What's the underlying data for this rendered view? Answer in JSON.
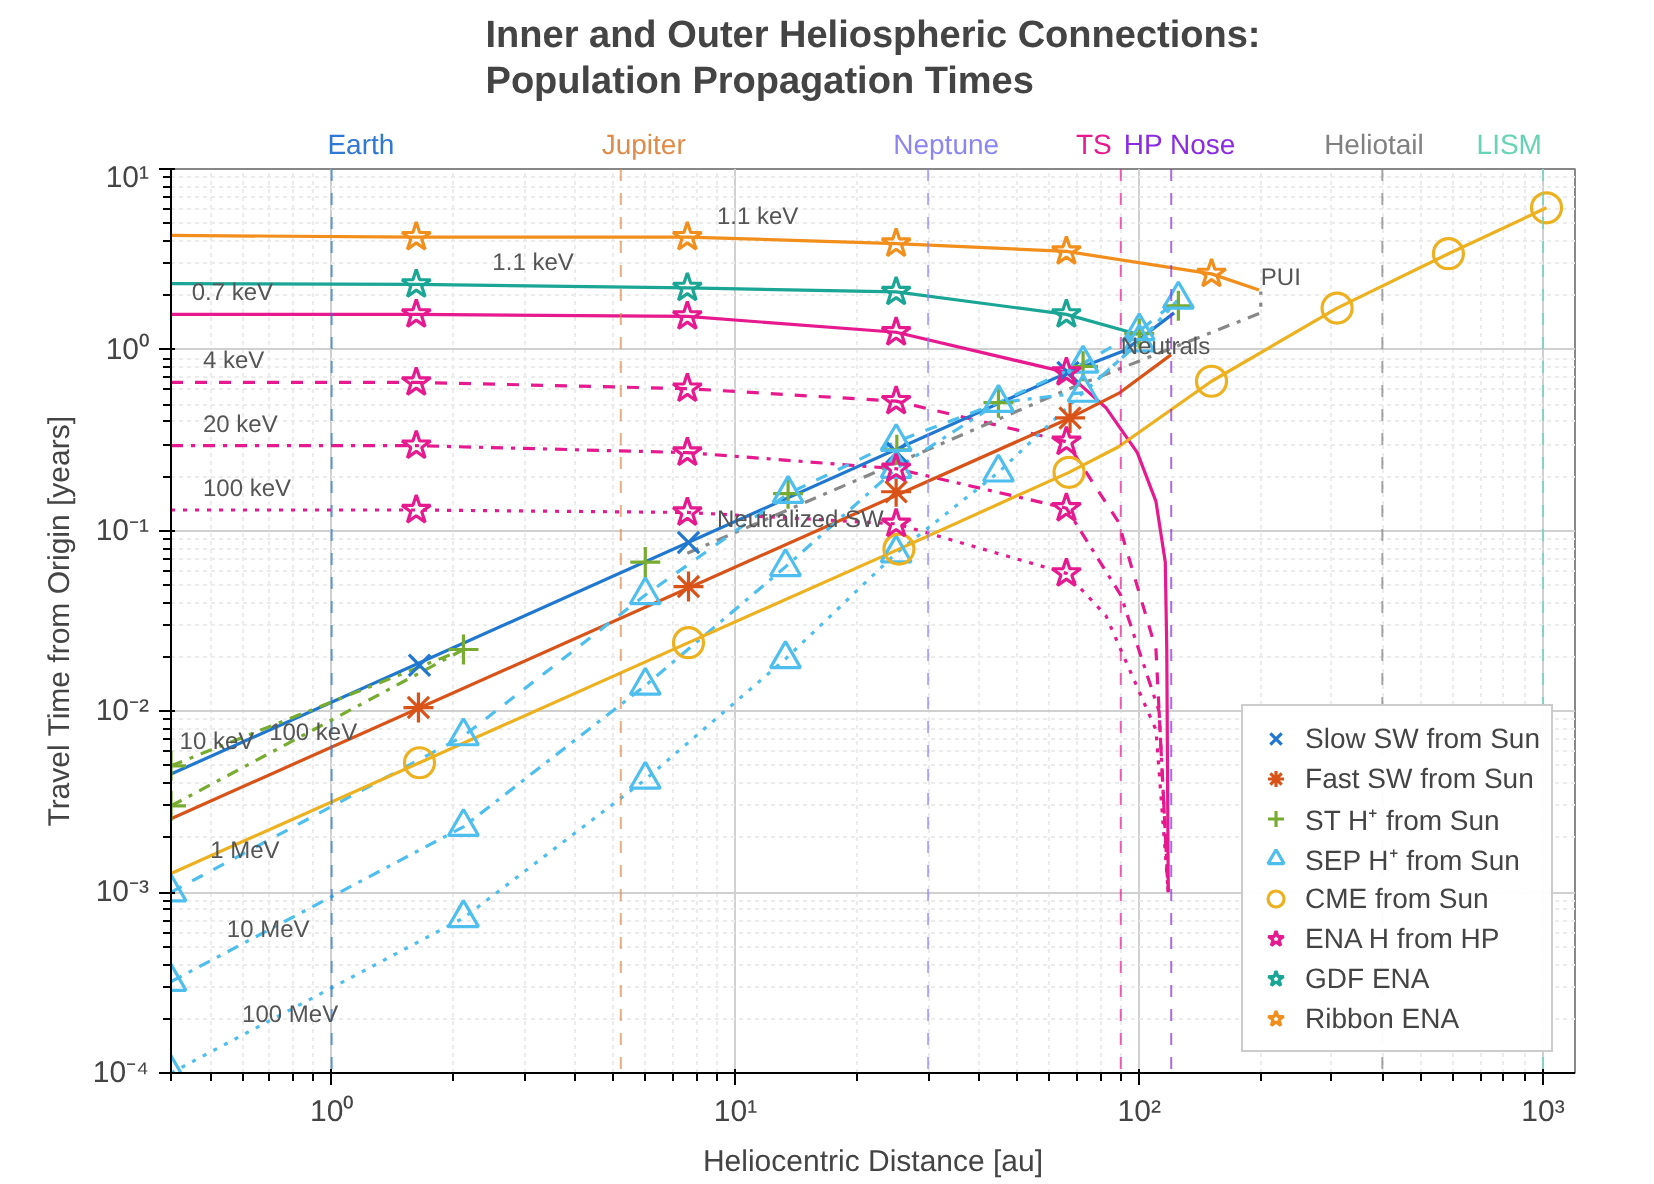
{
  "chart_data": {
    "type": "line",
    "title": "Inner and Outer Heliospheric Connections:\nPopulation Propagation Times",
    "xlabel": "Heliocentric Distance [au]",
    "ylabel": "Travel Time from Origin [years]",
    "log": "xy",
    "grid": true,
    "legend": "bottom right",
    "xlim": [
      0.4,
      1200
    ],
    "ylim": [
      0.0001,
      10
    ],
    "xticks": [
      {
        "value": 1,
        "label": "10⁰"
      },
      {
        "value": 10,
        "label": "10¹"
      },
      {
        "value": 100,
        "label": "10²"
      },
      {
        "value": 1000,
        "label": "10³"
      }
    ],
    "yticks": [
      {
        "value": 0.0001,
        "label": "10⁻⁴"
      },
      {
        "value": 0.001,
        "label": "10⁻³"
      },
      {
        "value": 0.01,
        "label": "10⁻²"
      },
      {
        "value": 0.1,
        "label": "10⁻¹"
      },
      {
        "value": 1,
        "label": "10⁰"
      },
      {
        "value": 10,
        "label": "10¹"
      }
    ],
    "ref_lines": [
      {
        "axis": "x",
        "value": 1,
        "label": "Earth",
        "color": "#2f78d4",
        "line_style": "dashed"
      },
      {
        "axis": "x",
        "value": 5.2,
        "label": "Jupiter",
        "color": "#e08a4a",
        "line_style": "dashed"
      },
      {
        "axis": "x",
        "value": 30,
        "label": "Neptune",
        "color": "#8c86f5",
        "line_style": "dashed"
      },
      {
        "axis": "x",
        "value": 90,
        "label": "TS",
        "color": "#e6198f",
        "line_style": "dashed"
      },
      {
        "axis": "x",
        "value": 120,
        "label": "HP Nose",
        "color": "#8a2be2",
        "line_style": "dashed"
      },
      {
        "axis": "x",
        "value": 400,
        "label": "Heliotail",
        "color": "#808080",
        "line_style": "dashed"
      },
      {
        "axis": "x",
        "value": 1000,
        "label": "LISM",
        "color": "#66d4b4",
        "line_style": "dashed"
      }
    ],
    "series": [
      {
        "color": "#f28e1c",
        "line_style": "solid",
        "x": [
          0.4,
          1.62,
          7.6,
          25,
          66,
          151,
          198
        ],
        "values": [
          4.29,
          4.2,
          4.2,
          3.87,
          3.5,
          2.63,
          2.14
        ]
      },
      {
        "color": "#1aa595",
        "line_style": "solid",
        "x": [
          0.4,
          1.62,
          7.6,
          25,
          66,
          99
        ],
        "values": [
          2.32,
          2.3,
          2.2,
          2.09,
          1.57,
          1.22
        ]
      },
      {
        "color": "#e6198f",
        "line_style": "solid",
        "x": [
          0.4,
          1.62,
          7.6,
          25,
          66,
          82.6,
          98.9,
          110,
          116,
          117,
          118
        ],
        "values": [
          1.57,
          1.57,
          1.53,
          1.25,
          0.75,
          0.48,
          0.27,
          0.145,
          0.067,
          0.0219,
          0.001
        ]
      },
      {
        "color": "#e6198f",
        "line_style": "dashed",
        "x": [
          0.4,
          1.62,
          7.6,
          25,
          66,
          88.7,
          110,
          118
        ],
        "values": [
          0.66,
          0.66,
          0.61,
          0.52,
          0.31,
          0.112,
          0.022,
          0.001
        ]
      },
      {
        "color": "#e6198f",
        "line_style": "dashdot",
        "x": [
          0.4,
          1.62,
          7.6,
          25,
          66,
          90,
          112,
          118
        ],
        "values": [
          0.295,
          0.295,
          0.27,
          0.22,
          0.133,
          0.044,
          0.01,
          0.001
        ]
      },
      {
        "color": "#e6198f",
        "line_style": "dotted",
        "x": [
          0.4,
          1.62,
          7.6,
          25,
          66,
          82.6,
          110,
          118
        ],
        "values": [
          0.13,
          0.13,
          0.126,
          0.109,
          0.058,
          0.034,
          0.0079,
          0.001
        ]
      },
      {
        "color": "#888888",
        "line_style": "dashdot",
        "x": [
          7.6,
          66,
          200,
          200
        ],
        "values": [
          0.075,
          0.6,
          1.6,
          2.1
        ]
      },
      {
        "color": "#1f77d0",
        "line_style": "solid",
        "x": [
          0.4,
          66.6,
          92,
          122
        ],
        "values": [
          0.0045,
          0.75,
          0.99,
          1.6
        ]
      },
      {
        "color": "#d95319",
        "line_style": "solid",
        "x": [
          0.4,
          67.4,
          89.6,
          120
        ],
        "values": [
          0.00255,
          0.42,
          0.58,
          0.94
        ]
      },
      {
        "color": "#77ac30",
        "line_style": "dashdot",
        "x": [
          0.4,
          2.12
        ],
        "values": [
          0.005,
          0.022
        ]
      },
      {
        "color": "#77ac30",
        "line_style": "dashdot",
        "x": [
          0.4,
          2.12
        ],
        "values": [
          0.003,
          0.022
        ]
      },
      {
        "color": "#4dbeee",
        "line_style": "dashed",
        "x": [
          0.4,
          2.12,
          5.98,
          13.5,
          25,
          44.8,
          72.6,
          100,
          125
        ],
        "values": [
          0.001,
          0.0073,
          0.044,
          0.16,
          0.31,
          0.51,
          0.84,
          1.27,
          1.9
        ]
      },
      {
        "color": "#4dbeee",
        "line_style": "dashdot",
        "x": [
          0.4,
          2.12,
          5.98,
          13.3,
          25,
          44.8,
          72.6,
          100,
          125
        ],
        "values": [
          0.00032,
          0.0023,
          0.0139,
          0.063,
          0.22,
          0.51,
          0.58,
          1.1,
          1.9
        ]
      },
      {
        "color": "#4dbeee",
        "line_style": "dotted",
        "x": [
          0.4,
          2.12,
          5.98,
          13.3,
          25,
          44.8,
          72.6,
          100,
          125
        ],
        "values": [
          0.0001,
          0.00072,
          0.0042,
          0.0195,
          0.075,
          0.21,
          0.58,
          1.1,
          1.9
        ]
      },
      {
        "color": "#edb120",
        "line_style": "solid",
        "x": [
          0.4,
          1.65,
          7.65,
          25.4,
          67,
          88.7,
          151,
          309,
          583,
          1020
        ],
        "values": [
          0.00127,
          0.0052,
          0.024,
          0.079,
          0.21,
          0.29,
          0.67,
          1.7,
          3.4,
          6.1
        ]
      },
      {
        "type": "scatter",
        "name": "Slow SW from Sun",
        "color": "#1f77d0",
        "marker": "x",
        "x": [
          1.65,
          7.65,
          25.1,
          66.6
        ],
        "values": [
          0.018,
          0.086,
          0.27,
          0.75
        ]
      },
      {
        "type": "scatter",
        "name": "Fast SW from Sun",
        "color": "#d95319",
        "x": [
          1.64,
          7.65,
          25,
          67.4
        ],
        "values": [
          0.0105,
          0.049,
          0.164,
          0.42
        ]
      },
      {
        "type": "scatter",
        "name": "ST H⁺ from Sun",
        "color": "#77ac30",
        "marker": "cross",
        "x": [
          0.4,
          0.4,
          2.12,
          5.98,
          13.5,
          25.1,
          44.8,
          72.6,
          100,
          125
        ],
        "values": [
          0.005,
          0.003,
          0.022,
          0.067,
          0.16,
          0.28,
          0.51,
          0.81,
          1.23,
          1.75
        ]
      },
      {
        "type": "scatter",
        "name": "SEP H⁺ from Sun",
        "color": "#4dbeee",
        "marker": "triangle",
        "x": [
          0.4,
          0.4,
          0.4,
          2.12,
          2.12,
          2.12,
          5.98,
          5.98,
          5.98,
          13.5,
          13.3,
          13.3,
          25,
          25,
          25,
          44.8,
          44.8,
          72.6,
          72.6,
          100,
          100,
          125
        ],
        "values": [
          0.001,
          0.00032,
          0.0001,
          0.0073,
          0.0023,
          0.00072,
          0.044,
          0.0139,
          0.0042,
          0.16,
          0.063,
          0.0195,
          0.31,
          0.22,
          0.075,
          0.51,
          0.21,
          0.84,
          0.58,
          1.27,
          1.1,
          1.9
        ]
      },
      {
        "type": "scatter",
        "name": "CME from Sun",
        "color": "#edb120",
        "marker": "circle",
        "x": [
          1.65,
          7.65,
          25.4,
          67,
          151,
          309,
          583,
          1020
        ],
        "values": [
          0.0052,
          0.024,
          0.079,
          0.21,
          0.67,
          1.7,
          3.4,
          6.1
        ]
      },
      {
        "type": "scatter",
        "name": "ENA H from HP",
        "color": "#e6198f",
        "marker": "star",
        "x": [
          1.62,
          7.6,
          25,
          66,
          1.62,
          7.6,
          25,
          66,
          1.62,
          7.6,
          25,
          66,
          1.62,
          7.6,
          25,
          66
        ],
        "values": [
          1.57,
          1.53,
          1.25,
          0.75,
          0.66,
          0.61,
          0.52,
          0.31,
          0.295,
          0.27,
          0.22,
          0.133,
          0.13,
          0.126,
          0.109,
          0.058
        ]
      },
      {
        "type": "scatter",
        "name": "GDF ENA",
        "color": "#1aa595",
        "marker": "star",
        "x": [
          1.62,
          7.6,
          25,
          66
        ],
        "values": [
          2.3,
          2.2,
          2.09,
          1.57
        ]
      },
      {
        "type": "scatter",
        "name": "Ribbon ENA",
        "color": "#f28e1c",
        "marker": "star",
        "x": [
          1.62,
          7.6,
          25,
          66,
          151
        ],
        "values": [
          4.2,
          4.2,
          3.87,
          3.5,
          2.63
        ]
      }
    ],
    "annotations": [
      {
        "text": "1.1 keV",
        "x": 9,
        "y": 4.15
      },
      {
        "text": "1.1 keV",
        "x": 2.5,
        "y": 2.3
      },
      {
        "text": "0.7 keV",
        "x": 0.45,
        "y": 1.57
      },
      {
        "text": "4 keV",
        "x": 0.48,
        "y": 0.66
      },
      {
        "text": "20 keV",
        "x": 0.48,
        "y": 0.295
      },
      {
        "text": "100 keV",
        "x": 0.48,
        "y": 0.13
      },
      {
        "text": "10 keV",
        "x": 0.42,
        "y": 0.0052
      },
      {
        "text": "100 keV",
        "x": 0.7,
        "y": 0.0058
      },
      {
        "text": "1 MeV",
        "x": 0.5,
        "y": 0.0013
      },
      {
        "text": "10 MeV",
        "x": 0.55,
        "y": 0.00047
      },
      {
        "text": "100 MeV",
        "x": 0.6,
        "y": 0.000161
      },
      {
        "text": "Neutralized SW",
        "x": 9,
        "y": 0.088
      },
      {
        "text": "Neutrals",
        "x": 90,
        "y": 0.79
      },
      {
        "text": "PUI",
        "x": 200,
        "y": 1.9
      }
    ]
  }
}
